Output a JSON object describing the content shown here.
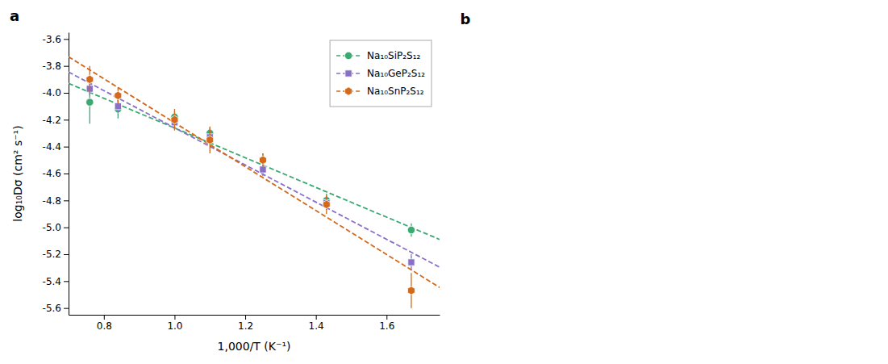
{
  "chart_data": {
    "type": "scatter",
    "xlabel": "1,000/T (K⁻¹)",
    "ylabel": "log₁₀Dσ (cm² s⁻¹)",
    "xlim": [
      0.7,
      1.75
    ],
    "ylim": [
      -5.65,
      -3.55
    ],
    "xticks": [
      0.8,
      {
        "value": 1.0,
        "label": "1.0"
      },
      1.2,
      1.4,
      1.6
    ],
    "yticks": [
      -5.6,
      -5.4,
      -5.2,
      {
        "value": -5.0,
        "label": "-5.0"
      },
      -4.8,
      -4.6,
      -4.4,
      -4.2,
      {
        "value": -4.0,
        "label": "-4.0"
      },
      -3.8,
      -3.6
    ],
    "grid": false,
    "legend": "upper right",
    "annotations": [
      {
        "text": "a"
      },
      {
        "text": "b"
      }
    ],
    "series": [
      {
        "name": "Na₁₀SiP₂S₁₂",
        "type": "scatter",
        "color": "#3aaa72",
        "marker": "circle",
        "x": [
          0.76,
          0.84,
          1.0,
          1.1,
          1.25,
          1.43,
          1.67
        ],
        "values": [
          -4.07,
          -4.12,
          -4.18,
          -4.3,
          -4.5,
          -4.8,
          -5.02
        ],
        "errors": [
          0.16,
          0.07,
          0.04,
          0.04,
          0.05,
          0.05,
          0.05
        ]
      },
      {
        "name": "Na₁₀GeP₂S₁₂",
        "type": "scatter",
        "color": "#8870c8",
        "marker": "square",
        "x": [
          0.76,
          0.84,
          1.0,
          1.1,
          1.25,
          1.43,
          1.67
        ],
        "values": [
          -3.97,
          -4.1,
          -4.22,
          -4.33,
          -4.57,
          -4.82,
          -5.26
        ],
        "errors": [
          0.05,
          0.05,
          0.05,
          0.06,
          0.05,
          0.05,
          0.06
        ]
      },
      {
        "name": "Na₁₀SnP₂S₁₂",
        "type": "scatter",
        "color": "#d4691a",
        "marker": "hexagon",
        "x": [
          0.76,
          0.84,
          1.0,
          1.1,
          1.25,
          1.43,
          1.67
        ],
        "values": [
          -3.9,
          -4.02,
          -4.2,
          -4.35,
          -4.5,
          -4.83,
          -5.47
        ],
        "errors": [
          0.1,
          0.06,
          0.08,
          0.1,
          0.05,
          0.07,
          0.13
        ]
      },
      {
        "type": "line",
        "color": "#3aaa72",
        "line_style": "dashed",
        "x": [
          0.7,
          1.75
        ],
        "values": [
          -3.930221,
          -5.089706
        ]
      },
      {
        "type": "line",
        "color": "#8870c8",
        "line_style": "dashed",
        "x": [
          0.7,
          1.75
        ],
        "values": [
          -3.845545,
          -5.29594
        ]
      },
      {
        "type": "line",
        "color": "#d4691a",
        "line_style": "dashed",
        "x": [
          0.7,
          1.75
        ],
        "values": [
          -3.732262,
          -5.446985
        ]
      }
    ]
  }
}
